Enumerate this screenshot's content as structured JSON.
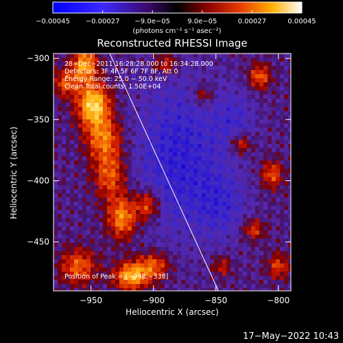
{
  "chart_data": {
    "type": "heatmap",
    "title": "Reconstructed RHESSI Image",
    "xlabel": "Heliocentric X (arcsec)",
    "ylabel": "Heliocentric Y (arcsec)",
    "xlim": [
      -980,
      -790
    ],
    "ylim": [
      -490,
      -296
    ],
    "xticks": [
      -950,
      -900,
      -850,
      -800
    ],
    "xtick_labels": [
      "−950",
      "−900",
      "−850",
      "−800"
    ],
    "yticks": [
      -300,
      -350,
      -400,
      -450
    ],
    "ytick_labels": [
      "−300",
      "−350",
      "−400",
      "−450"
    ],
    "colorbar": {
      "range": [
        -0.00045,
        0.00045
      ],
      "ticks": [
        -0.00045,
        -0.00027,
        -9e-05,
        9e-05,
        0.00027,
        0.00045
      ],
      "tick_labels": [
        "−0.00045",
        "−0.00027",
        "−9.0e−05",
        "9.0e−05",
        "0.00027",
        "0.00045"
      ],
      "unit_label": "(photons cm⁻² s⁻¹ asec⁻²)"
    },
    "annotations": {
      "time_range": "28−Dec−2011 16:28:28.000 to 16:34:28.000",
      "detectors": "Detectors: 3F 4F 5F 6F 7F 8F, Att 0",
      "energy": "Energy Range: 25.0 − 50.0 keV",
      "method": "Clean     Total counts: 1.50E+04",
      "peak": "Position of Peak = [−948,−338]"
    },
    "peak_position": [
      -948,
      -338
    ],
    "limb_line": [
      [
        -935,
        -296
      ],
      [
        -848,
        -490
      ]
    ],
    "grid": false,
    "colors": {
      "background": "#000000",
      "text": "#ffffff",
      "cb_low": "#0000ff",
      "cb_mid": "#000000",
      "cb_high": "#ffffff"
    }
  },
  "footer": {
    "timestamp": "17−May−2022 10:43"
  }
}
